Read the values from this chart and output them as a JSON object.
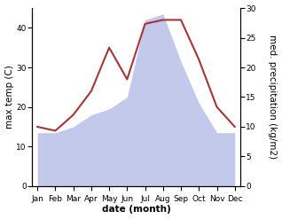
{
  "months": [
    "Jan",
    "Feb",
    "Mar",
    "Apr",
    "May",
    "Jun",
    "Jul",
    "Aug",
    "Sep",
    "Oct",
    "Nov",
    "Dec"
  ],
  "temp_max": [
    15,
    14,
    18,
    24,
    35,
    27,
    41,
    42,
    42,
    32,
    20,
    15
  ],
  "precip": [
    9,
    9,
    10,
    12,
    13,
    15,
    28,
    29,
    21,
    14,
    9,
    9
  ],
  "temp_color": "#aa3333",
  "precip_color": "#b8c0e8",
  "temp_ylim": [
    0,
    45
  ],
  "precip_ylim": [
    0,
    30
  ],
  "temp_yticks": [
    0,
    10,
    20,
    30,
    40
  ],
  "precip_yticks": [
    0,
    5,
    10,
    15,
    20,
    25,
    30
  ],
  "xlabel": "date (month)",
  "ylabel_left": "max temp (C)",
  "ylabel_right": "med. precipitation (kg/m2)",
  "bg_color": "#ffffff",
  "label_fontsize": 7.5,
  "tick_fontsize": 6.5
}
